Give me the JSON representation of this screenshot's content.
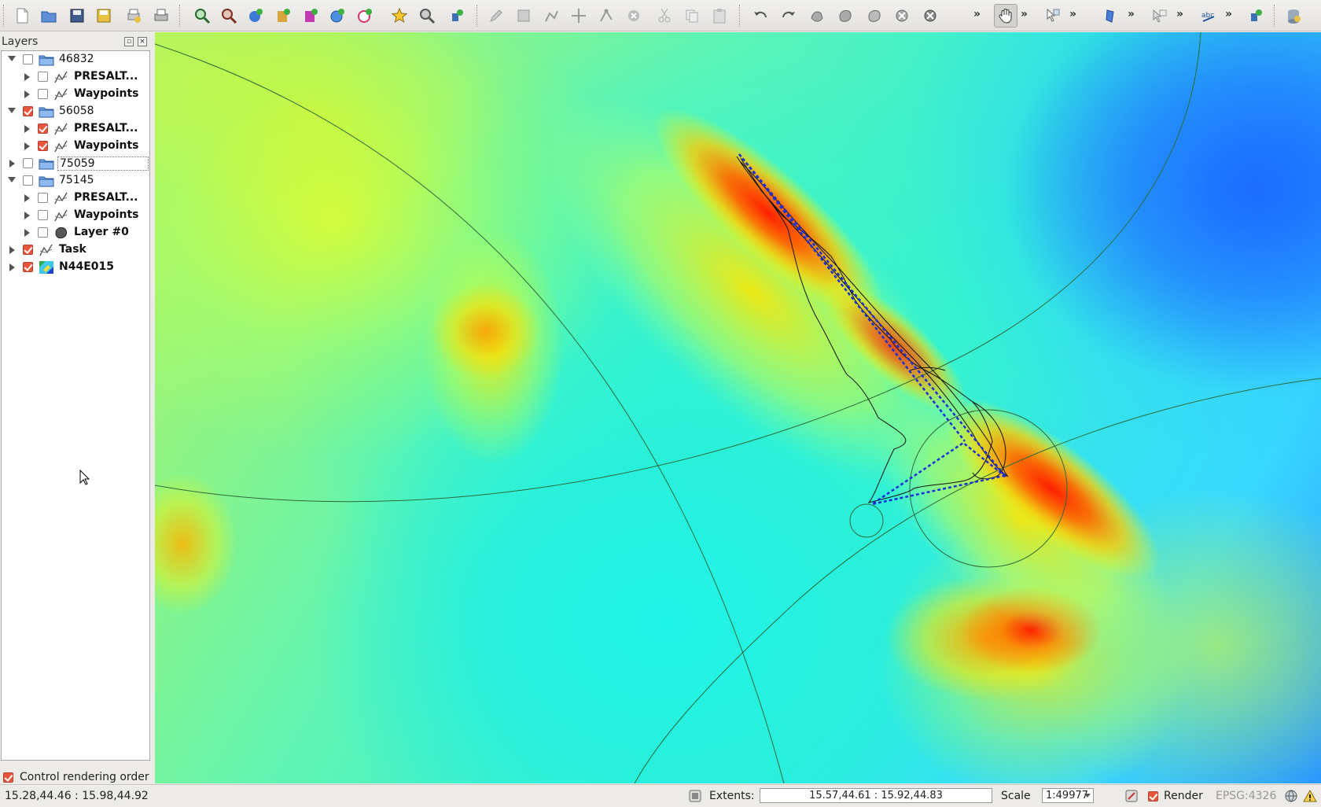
{
  "toolbar": {
    "overflow_label": "»"
  },
  "layers_panel": {
    "title": "Layers",
    "float_label": "▫",
    "close_label": "×",
    "items": [
      {
        "name": "46832",
        "expanded": true,
        "checked": false,
        "icon": "folder-icon",
        "level": 0
      },
      {
        "name": "PRESALT...",
        "expanded": false,
        "checked": false,
        "icon": "line-layer-icon",
        "level": 1
      },
      {
        "name": "Waypoints",
        "expanded": false,
        "checked": false,
        "icon": "line-layer-icon",
        "level": 1
      },
      {
        "name": "56058",
        "expanded": true,
        "checked": true,
        "icon": "folder-icon",
        "level": 0
      },
      {
        "name": "PRESALT...",
        "expanded": false,
        "checked": true,
        "icon": "line-layer-icon",
        "level": 1
      },
      {
        "name": "Waypoints",
        "expanded": false,
        "checked": true,
        "icon": "line-layer-icon",
        "level": 1
      },
      {
        "name": "75059",
        "expanded": false,
        "checked": false,
        "icon": "folder-icon",
        "level": 0
      },
      {
        "name": "75145",
        "expanded": true,
        "checked": false,
        "icon": "folder-icon",
        "level": 0
      },
      {
        "name": "PRESALT...",
        "expanded": false,
        "checked": false,
        "icon": "line-layer-icon",
        "level": 1
      },
      {
        "name": "Waypoints",
        "expanded": false,
        "checked": false,
        "icon": "line-layer-icon",
        "level": 1
      },
      {
        "name": "Layer #0",
        "expanded": false,
        "checked": false,
        "icon": "polygon-layer-icon",
        "level": 1
      },
      {
        "name": "Task",
        "expanded": false,
        "checked": true,
        "icon": "line-layer-icon",
        "level": 0
      },
      {
        "name": "N44E015",
        "expanded": false,
        "checked": true,
        "icon": "raster-layer-icon",
        "level": 0
      }
    ],
    "control_rendering_order": {
      "label": "Control rendering order",
      "checked": true
    }
  },
  "statusbar": {
    "coordinates": "15.28,44.46 : 15.98,44.92",
    "extents_label": "Extents:",
    "extents_value": "15.57,44.61 : 15.92,44.83",
    "scale_label": "Scale",
    "scale_value": "1:49977",
    "render_label": "Render",
    "render_checked": true,
    "crs": "EPSG:4326"
  },
  "colors": {
    "checkbox_on": "#e8553f",
    "task_line": "#1a2fd8",
    "track_line": "#111111",
    "circle_line": "#2f6b3a"
  }
}
